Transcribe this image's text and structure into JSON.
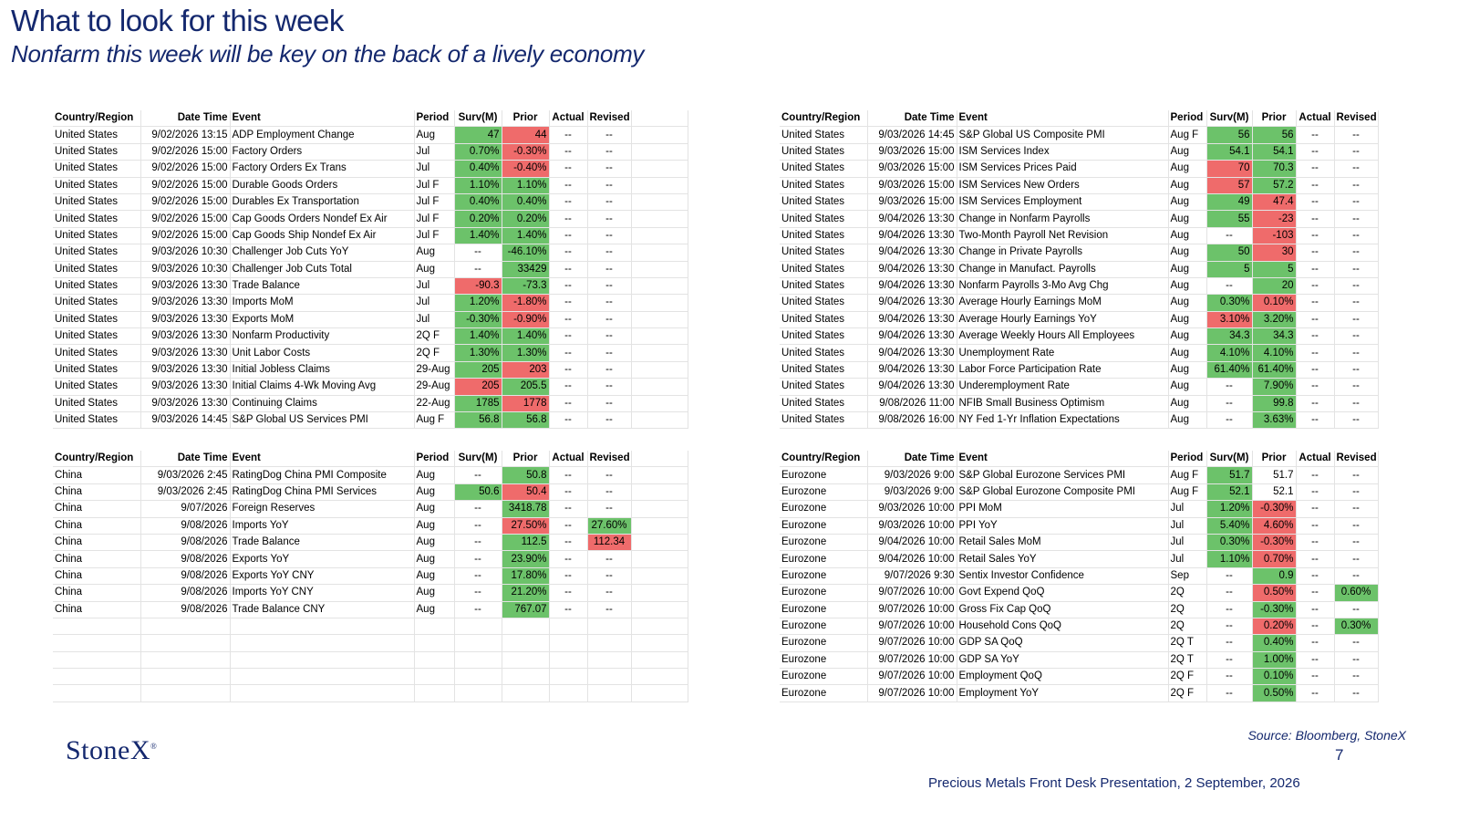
{
  "title": "What to look for this week",
  "subtitle": "Nonfarm this week will be key on the back of a lively economy",
  "headers": [
    "Country/Region",
    "Date Time",
    "Event",
    "Period",
    "Surv(M)",
    "Prior",
    "Actual",
    "Revised"
  ],
  "tables": {
    "us_left": [
      [
        "United States",
        "9/02/2026 13:15",
        "ADP Employment Change",
        "Aug",
        "47",
        "44",
        "--",
        "--"
      ],
      [
        "United States",
        "9/02/2026 15:00",
        "Factory Orders",
        "Jul",
        "0.70%",
        "-0.30%",
        "--",
        "--"
      ],
      [
        "United States",
        "9/02/2026 15:00",
        "Factory Orders Ex Trans",
        "Jul",
        "0.40%",
        "-0.40%",
        "--",
        "--"
      ],
      [
        "United States",
        "9/02/2026 15:00",
        "Durable Goods Orders",
        "Jul F",
        "1.10%",
        "1.10%",
        "--",
        "--"
      ],
      [
        "United States",
        "9/02/2026 15:00",
        "Durables Ex Transportation",
        "Jul F",
        "0.40%",
        "0.40%",
        "--",
        "--"
      ],
      [
        "United States",
        "9/02/2026 15:00",
        "Cap Goods Orders Nondef Ex Air",
        "Jul F",
        "0.20%",
        "0.20%",
        "--",
        "--"
      ],
      [
        "United States",
        "9/02/2026 15:00",
        "Cap Goods Ship Nondef Ex Air",
        "Jul F",
        "1.40%",
        "1.40%",
        "--",
        "--"
      ],
      [
        "United States",
        "9/03/2026 10:30",
        "Challenger Job Cuts YoY",
        "Aug",
        "--",
        "-46.10%",
        "--",
        "--"
      ],
      [
        "United States",
        "9/03/2026 10:30",
        "Challenger Job Cuts Total",
        "Aug",
        "--",
        "33429",
        "--",
        "--"
      ],
      [
        "United States",
        "9/03/2026 13:30",
        "Trade Balance",
        "Jul",
        "-90.3",
        "-73.3",
        "--",
        "--"
      ],
      [
        "United States",
        "9/03/2026 13:30",
        "Imports MoM",
        "Jul",
        "1.20%",
        "-1.80%",
        "--",
        "--"
      ],
      [
        "United States",
        "9/03/2026 13:30",
        "Exports MoM",
        "Jul",
        "-0.30%",
        "-0.90%",
        "--",
        "--"
      ],
      [
        "United States",
        "9/03/2026 13:30",
        "Nonfarm Productivity",
        "2Q F",
        "1.40%",
        "1.40%",
        "--",
        "--"
      ],
      [
        "United States",
        "9/03/2026 13:30",
        "Unit Labor Costs",
        "2Q F",
        "1.30%",
        "1.30%",
        "--",
        "--"
      ],
      [
        "United States",
        "9/03/2026 13:30",
        "Initial Jobless Claims",
        "29-Aug",
        "205",
        "203",
        "--",
        "--"
      ],
      [
        "United States",
        "9/03/2026 13:30",
        "Initial Claims 4-Wk Moving Avg",
        "29-Aug",
        "205",
        "205.5",
        "--",
        "--"
      ],
      [
        "United States",
        "9/03/2026 13:30",
        "Continuing Claims",
        "22-Aug",
        "1785",
        "1778",
        "--",
        "--"
      ],
      [
        "United States",
        "9/03/2026 14:45",
        "S&P Global US Services PMI",
        "Aug F",
        "56.8",
        "56.8",
        "--",
        "--"
      ]
    ],
    "us_left_colors": [
      [
        "",
        "",
        "",
        "",
        "g",
        "r",
        "",
        ""
      ],
      [
        "",
        "",
        "",
        "",
        "g",
        "r",
        "",
        ""
      ],
      [
        "",
        "",
        "",
        "",
        "g",
        "r",
        "",
        ""
      ],
      [
        "",
        "",
        "",
        "",
        "g",
        "g",
        "",
        ""
      ],
      [
        "",
        "",
        "",
        "",
        "g",
        "g",
        "",
        ""
      ],
      [
        "",
        "",
        "",
        "",
        "g",
        "g",
        "",
        ""
      ],
      [
        "",
        "",
        "",
        "",
        "g",
        "g",
        "",
        ""
      ],
      [
        "",
        "",
        "",
        "",
        "",
        "g",
        "",
        ""
      ],
      [
        "",
        "",
        "",
        "",
        "",
        "g",
        "",
        ""
      ],
      [
        "",
        "",
        "",
        "",
        "r",
        "g",
        "",
        ""
      ],
      [
        "",
        "",
        "",
        "",
        "g",
        "r",
        "",
        ""
      ],
      [
        "",
        "",
        "",
        "",
        "g",
        "r",
        "",
        ""
      ],
      [
        "",
        "",
        "",
        "",
        "g",
        "g",
        "",
        ""
      ],
      [
        "",
        "",
        "",
        "",
        "g",
        "g",
        "",
        ""
      ],
      [
        "",
        "",
        "",
        "",
        "g",
        "r",
        "",
        ""
      ],
      [
        "",
        "",
        "",
        "",
        "r",
        "g",
        "",
        ""
      ],
      [
        "",
        "",
        "",
        "",
        "g",
        "r",
        "",
        ""
      ],
      [
        "",
        "",
        "",
        "",
        "g",
        "g",
        "",
        ""
      ]
    ],
    "us_right": [
      [
        "United States",
        "9/03/2026 14:45",
        "S&P Global US Composite PMI",
        "Aug F",
        "56",
        "56",
        "--",
        "--"
      ],
      [
        "United States",
        "9/03/2026 15:00",
        "ISM Services Index",
        "Aug",
        "54.1",
        "54.1",
        "--",
        "--"
      ],
      [
        "United States",
        "9/03/2026 15:00",
        "ISM Services Prices Paid",
        "Aug",
        "70",
        "70.3",
        "--",
        "--"
      ],
      [
        "United States",
        "9/03/2026 15:00",
        "ISM Services New Orders",
        "Aug",
        "57",
        "57.2",
        "--",
        "--"
      ],
      [
        "United States",
        "9/03/2026 15:00",
        "ISM Services Employment",
        "Aug",
        "49",
        "47.4",
        "--",
        "--"
      ],
      [
        "United States",
        "9/04/2026 13:30",
        "Change in Nonfarm Payrolls",
        "Aug",
        "55",
        "-23",
        "--",
        "--"
      ],
      [
        "United States",
        "9/04/2026 13:30",
        "Two-Month Payroll Net Revision",
        "Aug",
        "--",
        "-103",
        "--",
        "--"
      ],
      [
        "United States",
        "9/04/2026 13:30",
        "Change in Private Payrolls",
        "Aug",
        "50",
        "30",
        "--",
        "--"
      ],
      [
        "United States",
        "9/04/2026 13:30",
        "Change in Manufact. Payrolls",
        "Aug",
        "5",
        "5",
        "--",
        "--"
      ],
      [
        "United States",
        "9/04/2026 13:30",
        "Nonfarm Payrolls 3-Mo Avg Chg",
        "Aug",
        "--",
        "20",
        "--",
        "--"
      ],
      [
        "United States",
        "9/04/2026 13:30",
        "Average Hourly Earnings MoM",
        "Aug",
        "0.30%",
        "0.10%",
        "--",
        "--"
      ],
      [
        "United States",
        "9/04/2026 13:30",
        "Average Hourly Earnings YoY",
        "Aug",
        "3.10%",
        "3.20%",
        "--",
        "--"
      ],
      [
        "United States",
        "9/04/2026 13:30",
        "Average Weekly Hours All Employees",
        "Aug",
        "34.3",
        "34.3",
        "--",
        "--"
      ],
      [
        "United States",
        "9/04/2026 13:30",
        "Unemployment Rate",
        "Aug",
        "4.10%",
        "4.10%",
        "--",
        "--"
      ],
      [
        "United States",
        "9/04/2026 13:30",
        "Labor Force Participation Rate",
        "Aug",
        "61.40%",
        "61.40%",
        "--",
        "--"
      ],
      [
        "United States",
        "9/04/2026 13:30",
        "Underemployment Rate",
        "Aug",
        "--",
        "7.90%",
        "--",
        "--"
      ],
      [
        "United States",
        "9/08/2026 11:00",
        "NFIB Small Business Optimism",
        "Aug",
        "--",
        "99.8",
        "--",
        "--"
      ],
      [
        "United States",
        "9/08/2026 16:00",
        "NY Fed 1-Yr Inflation Expectations",
        "Aug",
        "--",
        "3.63%",
        "--",
        "--"
      ]
    ],
    "us_right_colors": [
      [
        "",
        "",
        "",
        "",
        "g",
        "g",
        "",
        ""
      ],
      [
        "",
        "",
        "",
        "",
        "g",
        "g",
        "",
        ""
      ],
      [
        "",
        "",
        "",
        "",
        "r",
        "g",
        "",
        ""
      ],
      [
        "",
        "",
        "",
        "",
        "r",
        "g",
        "",
        ""
      ],
      [
        "",
        "",
        "",
        "",
        "g",
        "r",
        "",
        ""
      ],
      [
        "",
        "",
        "",
        "",
        "g",
        "r",
        "",
        ""
      ],
      [
        "",
        "",
        "",
        "",
        "",
        "r",
        "",
        ""
      ],
      [
        "",
        "",
        "",
        "",
        "g",
        "r",
        "",
        ""
      ],
      [
        "",
        "",
        "",
        "",
        "g",
        "g",
        "",
        ""
      ],
      [
        "",
        "",
        "",
        "",
        "",
        "g",
        "",
        ""
      ],
      [
        "",
        "",
        "",
        "",
        "g",
        "r",
        "",
        ""
      ],
      [
        "",
        "",
        "",
        "",
        "r",
        "g",
        "",
        ""
      ],
      [
        "",
        "",
        "",
        "",
        "g",
        "g",
        "",
        ""
      ],
      [
        "",
        "",
        "",
        "",
        "g",
        "g",
        "",
        ""
      ],
      [
        "",
        "",
        "",
        "",
        "g",
        "g",
        "",
        ""
      ],
      [
        "",
        "",
        "",
        "",
        "",
        "g",
        "",
        ""
      ],
      [
        "",
        "",
        "",
        "",
        "",
        "g",
        "",
        ""
      ],
      [
        "",
        "",
        "",
        "",
        "",
        "g",
        "",
        ""
      ]
    ],
    "china": [
      [
        "China",
        "9/03/2026 2:45",
        "RatingDog China PMI Composite",
        "Aug",
        "--",
        "50.8",
        "--",
        "--"
      ],
      [
        "China",
        "9/03/2026 2:45",
        "RatingDog China PMI Services",
        "Aug",
        "50.6",
        "50.4",
        "--",
        "--"
      ],
      [
        "China",
        "9/07/2026",
        "Foreign Reserves",
        "Aug",
        "--",
        "3418.78",
        "--",
        "--"
      ],
      [
        "China",
        "9/08/2026",
        "Imports YoY",
        "Aug",
        "--",
        "27.50%",
        "--",
        "27.60%"
      ],
      [
        "China",
        "9/08/2026",
        "Trade Balance",
        "Aug",
        "--",
        "112.5",
        "--",
        "112.34"
      ],
      [
        "China",
        "9/08/2026",
        "Exports YoY",
        "Aug",
        "--",
        "23.90%",
        "--",
        "--"
      ],
      [
        "China",
        "9/08/2026",
        "Exports YoY CNY",
        "Aug",
        "--",
        "17.80%",
        "--",
        "--"
      ],
      [
        "China",
        "9/08/2026",
        "Imports YoY CNY",
        "Aug",
        "--",
        "21.20%",
        "--",
        "--"
      ],
      [
        "China",
        "9/08/2026",
        "Trade Balance CNY",
        "Aug",
        "--",
        "767.07",
        "--",
        "--"
      ],
      [
        "",
        "",
        "",
        "",
        "",
        "",
        "",
        ""
      ],
      [
        "",
        "",
        "",
        "",
        "",
        "",
        "",
        ""
      ],
      [
        "",
        "",
        "",
        "",
        "",
        "",
        "",
        ""
      ],
      [
        "",
        "",
        "",
        "",
        "",
        "",
        "",
        ""
      ],
      [
        "",
        "",
        "",
        "",
        "",
        "",
        "",
        ""
      ]
    ],
    "china_colors": [
      [
        "",
        "",
        "",
        "",
        "",
        "g",
        "",
        ""
      ],
      [
        "",
        "",
        "",
        "",
        "g",
        "r",
        "",
        ""
      ],
      [
        "",
        "",
        "",
        "",
        "",
        "g",
        "",
        ""
      ],
      [
        "",
        "",
        "",
        "",
        "",
        "r",
        "",
        "g"
      ],
      [
        "",
        "",
        "",
        "",
        "",
        "g",
        "",
        "r"
      ],
      [
        "",
        "",
        "",
        "",
        "",
        "g",
        "",
        ""
      ],
      [
        "",
        "",
        "",
        "",
        "",
        "g",
        "",
        ""
      ],
      [
        "",
        "",
        "",
        "",
        "",
        "g",
        "",
        ""
      ],
      [
        "",
        "",
        "",
        "",
        "",
        "g",
        "",
        ""
      ],
      [
        "",
        "",
        "",
        "",
        "",
        "",
        "",
        ""
      ],
      [
        "",
        "",
        "",
        "",
        "",
        "",
        "",
        ""
      ],
      [
        "",
        "",
        "",
        "",
        "",
        "",
        "",
        ""
      ],
      [
        "",
        "",
        "",
        "",
        "",
        "",
        "",
        ""
      ],
      [
        "",
        "",
        "",
        "",
        "",
        "",
        "",
        ""
      ]
    ],
    "eurozone": [
      [
        "Eurozone",
        "9/03/2026 9:00",
        "S&P Global Eurozone Services PMI",
        "Aug F",
        "51.7",
        "51.7",
        "--",
        "--"
      ],
      [
        "Eurozone",
        "9/03/2026 9:00",
        "S&P Global Eurozone Composite PMI",
        "Aug F",
        "52.1",
        "52.1",
        "--",
        "--"
      ],
      [
        "Eurozone",
        "9/03/2026 10:00",
        "PPI MoM",
        "Jul",
        "1.20%",
        "-0.30%",
        "--",
        "--"
      ],
      [
        "Eurozone",
        "9/03/2026 10:00",
        "PPI YoY",
        "Jul",
        "5.40%",
        "4.60%",
        "--",
        "--"
      ],
      [
        "Eurozone",
        "9/04/2026 10:00",
        "Retail Sales MoM",
        "Jul",
        "0.30%",
        "-0.30%",
        "--",
        "--"
      ],
      [
        "Eurozone",
        "9/04/2026 10:00",
        "Retail Sales YoY",
        "Jul",
        "1.10%",
        "0.70%",
        "--",
        "--"
      ],
      [
        "Eurozone",
        "9/07/2026 9:30",
        "Sentix Investor Confidence",
        "Sep",
        "--",
        "0.9",
        "--",
        "--"
      ],
      [
        "Eurozone",
        "9/07/2026 10:00",
        "Govt Expend QoQ",
        "2Q",
        "--",
        "0.50%",
        "--",
        "0.60%"
      ],
      [
        "Eurozone",
        "9/07/2026 10:00",
        "Gross Fix Cap QoQ",
        "2Q",
        "--",
        "-0.30%",
        "--",
        "--"
      ],
      [
        "Eurozone",
        "9/07/2026 10:00",
        "Household Cons QoQ",
        "2Q",
        "--",
        "0.20%",
        "--",
        "0.30%"
      ],
      [
        "Eurozone",
        "9/07/2026 10:00",
        "GDP SA QoQ",
        "2Q T",
        "--",
        "0.40%",
        "--",
        "--"
      ],
      [
        "Eurozone",
        "9/07/2026 10:00",
        "GDP SA YoY",
        "2Q T",
        "--",
        "1.00%",
        "--",
        "--"
      ],
      [
        "Eurozone",
        "9/07/2026 10:00",
        "Employment QoQ",
        "2Q F",
        "--",
        "0.10%",
        "--",
        "--"
      ],
      [
        "Eurozone",
        "9/07/2026 10:00",
        "Employment YoY",
        "2Q F",
        "--",
        "0.50%",
        "--",
        "--"
      ]
    ],
    "eurozone_colors": [
      [
        "",
        "",
        "",
        "",
        "g",
        "",
        "",
        ""
      ],
      [
        "",
        "",
        "",
        "",
        "g",
        "",
        "",
        ""
      ],
      [
        "",
        "",
        "",
        "",
        "g",
        "r",
        "",
        ""
      ],
      [
        "",
        "",
        "",
        "",
        "g",
        "r",
        "",
        ""
      ],
      [
        "",
        "",
        "",
        "",
        "g",
        "r",
        "",
        ""
      ],
      [
        "",
        "",
        "",
        "",
        "g",
        "r",
        "",
        ""
      ],
      [
        "",
        "",
        "",
        "",
        "",
        "g",
        "",
        ""
      ],
      [
        "",
        "",
        "",
        "",
        "",
        "r",
        "",
        "g"
      ],
      [
        "",
        "",
        "",
        "",
        "",
        "g",
        "",
        ""
      ],
      [
        "",
        "",
        "",
        "",
        "",
        "r",
        "",
        "g"
      ],
      [
        "",
        "",
        "",
        "",
        "",
        "g",
        "",
        ""
      ],
      [
        "",
        "",
        "",
        "",
        "",
        "g",
        "",
        ""
      ],
      [
        "",
        "",
        "",
        "",
        "",
        "g",
        "",
        ""
      ],
      [
        "",
        "",
        "",
        "",
        "",
        "g",
        "",
        ""
      ]
    ]
  },
  "logo": "StoneX",
  "logo_mark": "®",
  "source": "Source: Bloomberg, StoneX",
  "page_number": "7",
  "footer": "Precious Metals Front Desk Presentation, 2 September, 2026"
}
